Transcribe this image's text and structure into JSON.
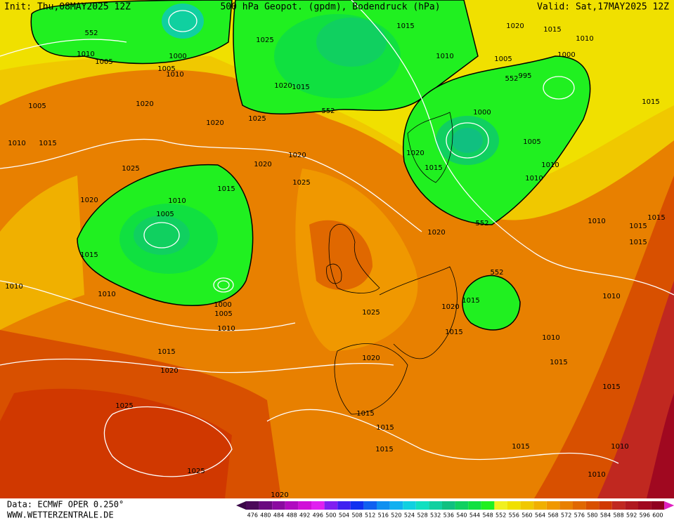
{
  "header": {
    "init": "Init: Thu,08MAY2025 12Z",
    "title": "500 hPa Geopot. (gpdm), Bodendruck (hPa)",
    "valid": "Valid: Sat,17MAY2025 12Z"
  },
  "isobar_labels": [
    552,
    1010,
    1005,
    1000,
    1005,
    1010,
    1025,
    1015,
    1020,
    1015,
    1010,
    1010,
    1005,
    1000,
    995,
    552,
    1020,
    1015,
    1005,
    1020,
    552,
    1000,
    1025,
    1020,
    1015,
    1010,
    1015,
    1005,
    1020,
    1020,
    1020,
    1025,
    1015,
    1010,
    1010,
    1025,
    1015,
    1020,
    1010,
    1005,
    1010,
    1015,
    1015,
    1020,
    552,
    1015,
    1015,
    552,
    1010,
    1010,
    1010,
    1000,
    1020,
    1015,
    1005,
    1025,
    1010,
    1015,
    1010,
    1015,
    1015,
    1020,
    1020,
    1015,
    1025,
    1015,
    1015,
    1015,
    1015,
    1010,
    1025,
    1010,
    1020
  ],
  "colorbar": {
    "values": [
      476,
      480,
      484,
      488,
      492,
      496,
      500,
      504,
      508,
      512,
      516,
      520,
      524,
      528,
      532,
      536,
      540,
      544,
      548,
      552,
      556,
      560,
      564,
      568,
      572,
      576,
      580,
      584,
      588,
      592,
      596,
      600
    ],
    "colors": [
      "#4b0a5a",
      "#6a0a80",
      "#8a0aa0",
      "#b00ac0",
      "#d010d8",
      "#e020f0",
      "#8020f0",
      "#4020f0",
      "#1030f0",
      "#1060f0",
      "#1090f0",
      "#10b0f0",
      "#10d0e0",
      "#10e0c0",
      "#10d0a0",
      "#10c080",
      "#10d060",
      "#10e040",
      "#20f020",
      "#f0f020",
      "#f0e000",
      "#f0c800",
      "#f0b000",
      "#f09800",
      "#e88000",
      "#e06800",
      "#d85000",
      "#d03800",
      "#c02820",
      "#b01820",
      "#a00820",
      "#900020"
    ]
  },
  "footer": {
    "source": "Data: ECMWF OPER 0.250°",
    "website": "WWW.WETTERZENTRALE.DE"
  }
}
